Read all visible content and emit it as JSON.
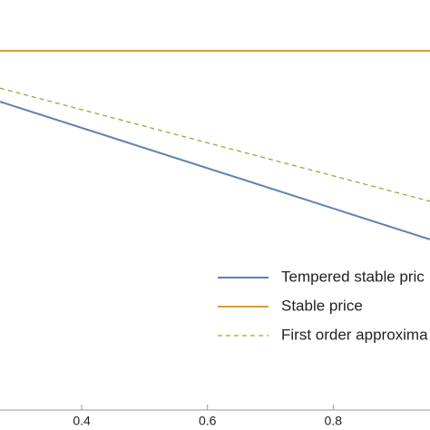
{
  "chart_data": {
    "type": "line",
    "x": [
      0.27,
      0.954
    ],
    "series": [
      {
        "name": "Tempered stable pric",
        "color": "#5e81b5",
        "dash": false,
        "values": [
          0.752,
          0.416
        ]
      },
      {
        "name": "Stable price",
        "color": "#e19c24",
        "dash": false,
        "values": [
          0.876,
          0.876
        ]
      },
      {
        "name": "First order approxima",
        "color": "#8fb032",
        "dash": true,
        "values": [
          0.785,
          0.509
        ]
      }
    ],
    "xlim": [
      0.27,
      0.954
    ],
    "xticks": [
      0.4,
      0.6,
      0.8
    ],
    "ylim": [
      0,
      1
    ]
  }
}
